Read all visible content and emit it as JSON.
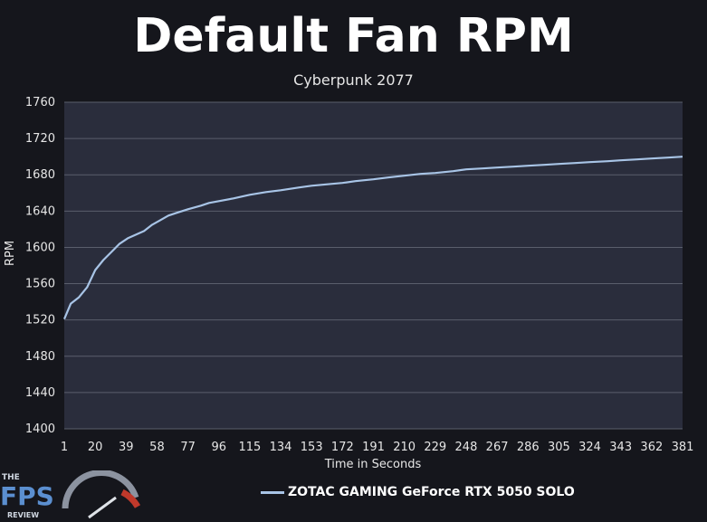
{
  "chart_data": {
    "type": "line",
    "title": "Default Fan RPM",
    "subtitle": "Cyberpunk 2077",
    "xlabel": "Time in Seconds",
    "ylabel": "RPM",
    "ylim": [
      1400,
      1760
    ],
    "yticks": [
      1400,
      1440,
      1480,
      1520,
      1560,
      1600,
      1640,
      1680,
      1720,
      1760
    ],
    "xlim": [
      1,
      381
    ],
    "xticks": [
      1,
      20,
      39,
      58,
      77,
      96,
      115,
      134,
      153,
      172,
      191,
      210,
      229,
      248,
      267,
      286,
      305,
      324,
      343,
      362,
      381
    ],
    "grid": true,
    "legend_position": "bottom",
    "series": [
      {
        "name": "ZOTAC GAMING GeForce RTX 5050 SOLO",
        "color": "#a8c4e6",
        "x": [
          1,
          5,
          10,
          15,
          20,
          25,
          30,
          35,
          40,
          45,
          50,
          55,
          60,
          65,
          70,
          77,
          85,
          90,
          96,
          105,
          115,
          125,
          134,
          145,
          153,
          165,
          172,
          180,
          191,
          200,
          210,
          220,
          229,
          240,
          248,
          258,
          267,
          277,
          286,
          296,
          305,
          315,
          324,
          335,
          343,
          353,
          362,
          372,
          381
        ],
        "values": [
          1521,
          1538,
          1545,
          1556,
          1575,
          1586,
          1595,
          1604,
          1610,
          1614,
          1618,
          1625,
          1630,
          1635,
          1638,
          1642,
          1646,
          1649,
          1651,
          1654,
          1658,
          1661,
          1663,
          1666,
          1668,
          1670,
          1671,
          1673,
          1675,
          1677,
          1679,
          1681,
          1682,
          1684,
          1686,
          1687,
          1688,
          1689,
          1690,
          1691,
          1692,
          1693,
          1694,
          1695,
          1696,
          1697,
          1698,
          1699,
          1700
        ]
      }
    ]
  },
  "brand": {
    "logo_text_small": "THE",
    "logo_text_main": "FPS",
    "logo_text_sub": "REVIEW"
  }
}
